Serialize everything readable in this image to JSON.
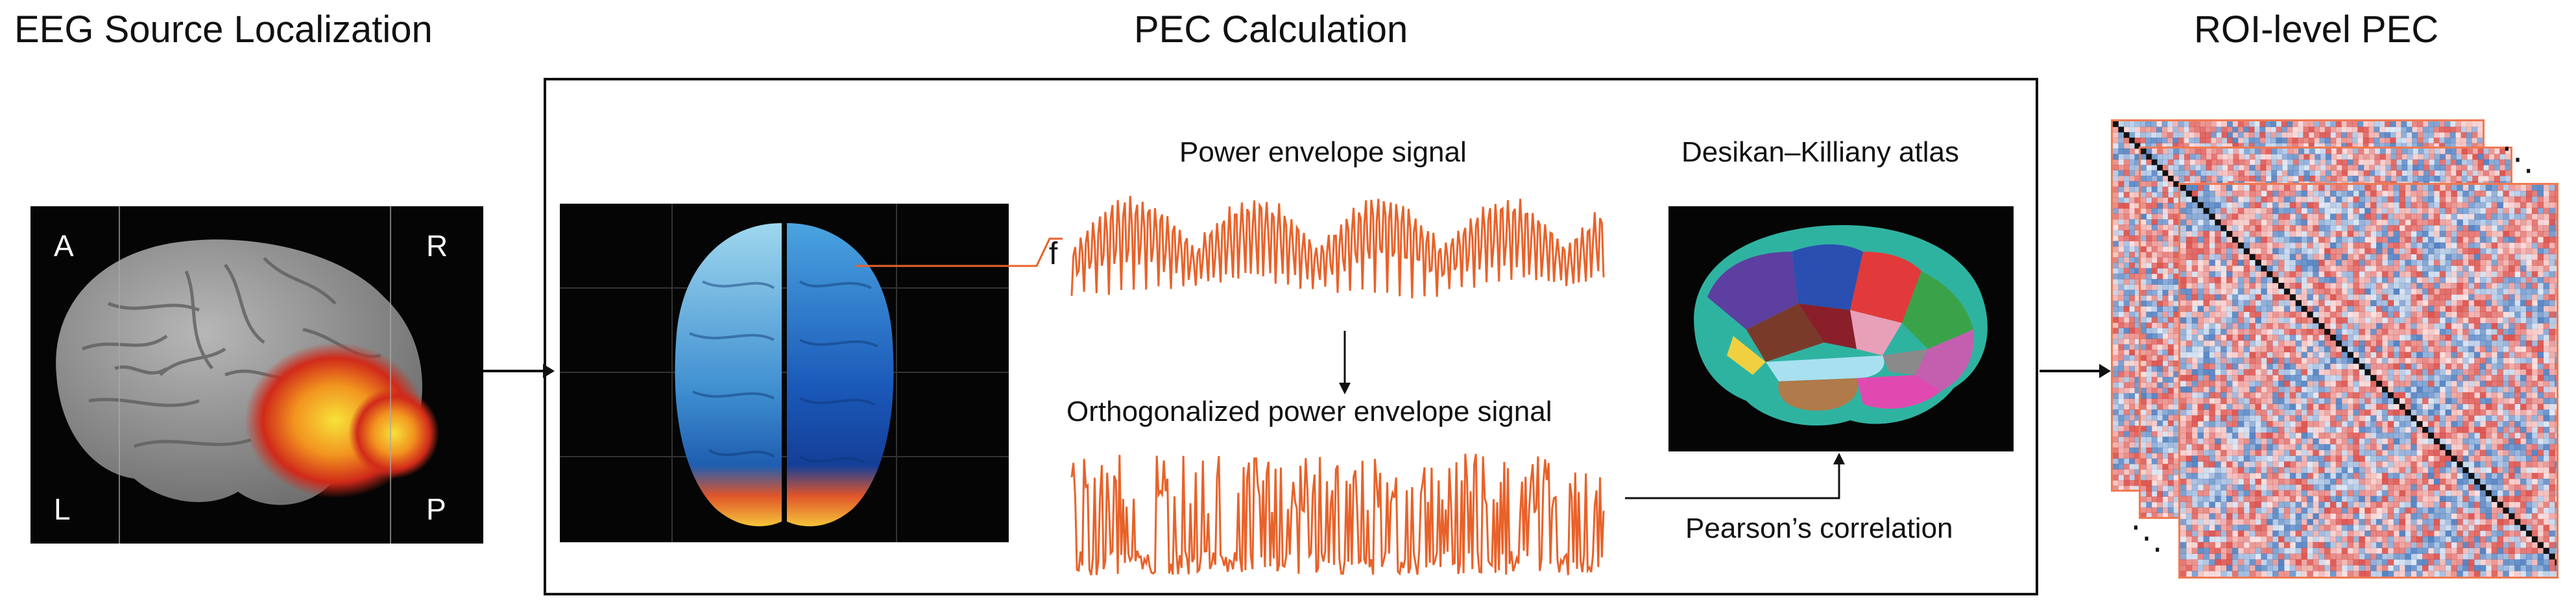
{
  "sections": {
    "source_title": "EEG Source Localization",
    "pec_title": "PEC Calculation",
    "roi_title": "ROI-level PEC"
  },
  "orientation": {
    "anterior": "A",
    "right": "R",
    "left": "L",
    "posterior": "P"
  },
  "signals": {
    "power_envelope": "Power envelope signal",
    "orthogonalized": "Orthogonalized power envelope signal",
    "frequency_marker": "f"
  },
  "atlas": {
    "label": "Desikan–Killiany atlas"
  },
  "correlation": {
    "label": "Pearson’s correlation"
  },
  "stack": {
    "ellipsis_top": "⋱",
    "ellipsis_bottom": "⋱"
  },
  "colors": {
    "signal": "#e8622a",
    "matrix_border": "#f07a52",
    "panel_bg": "#050505",
    "positive": "#d63a35",
    "negative": "#3a6fb8"
  }
}
